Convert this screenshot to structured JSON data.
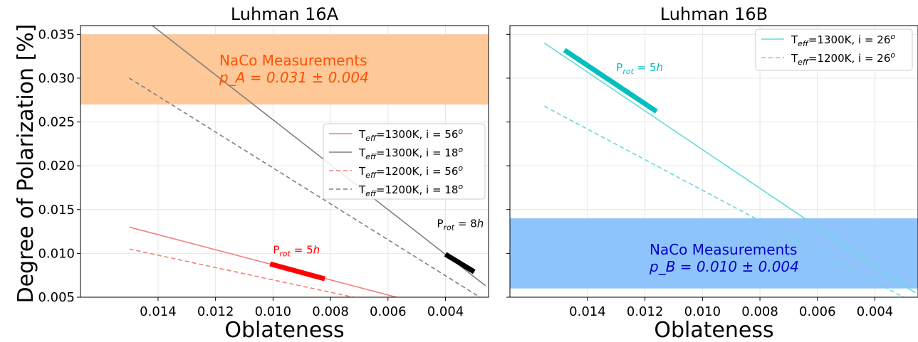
{
  "ylabel": "Degree of Polarization [%]",
  "chart_data": [
    {
      "type": "line",
      "title": "Luhman 16A",
      "xlabel": "Oblateness",
      "xlim": [
        0.0167,
        0.0025
      ],
      "ylim": [
        0.005,
        0.036
      ],
      "x_inverted": true,
      "grid": true,
      "legend_position": "center-right",
      "xticks": [
        "0.014",
        "0.012",
        "0.010",
        "0.008",
        "0.006",
        "0.004"
      ],
      "xtick_values": [
        0.014,
        0.012,
        0.01,
        0.008,
        0.006,
        0.004
      ],
      "yticks": [
        "0.005",
        "0.010",
        "0.015",
        "0.020",
        "0.025",
        "0.030",
        "0.035"
      ],
      "ytick_values": [
        0.005,
        0.01,
        0.015,
        0.02,
        0.025,
        0.03,
        0.035
      ],
      "band": {
        "y": [
          0.027,
          0.035
        ],
        "color": "#ffc898",
        "label_line1": "NaCo Measurements",
        "label_line2": "p_A = 0.031 ± 0.004",
        "label_color": "#ff5000"
      },
      "series": [
        {
          "name": "T_eff=1300K, i = 56°",
          "legend_main": "T",
          "legend_sub": "eff",
          "legend_rest": "=1300K, i = 56",
          "legend_sup": "o",
          "color": "#f47f7c",
          "dash": false,
          "x": [
            0.015,
            0.0057
          ],
          "y": [
            0.013,
            0.005
          ]
        },
        {
          "name": "T_eff=1300K, i = 18°",
          "legend_main": "T",
          "legend_sub": "eff",
          "legend_rest": "=1300K, i = 18",
          "legend_sup": "o",
          "color": "#808080",
          "dash": false,
          "x": [
            0.0142,
            0.0026
          ],
          "y": [
            0.036,
            0.0063
          ]
        },
        {
          "name": "T_eff=1200K, i = 56°",
          "legend_main": "T",
          "legend_sub": "eff",
          "legend_rest": "=1200K, i = 56",
          "legend_sup": "o",
          "color": "#f47f7c",
          "dash": true,
          "x": [
            0.015,
            0.0072
          ],
          "y": [
            0.0105,
            0.005
          ]
        },
        {
          "name": "T_eff=1200K, i = 18°",
          "legend_main": "T",
          "legend_sub": "eff",
          "legend_rest": "=1200K, i = 18",
          "legend_sup": "o",
          "color": "#808080",
          "dash": true,
          "x": [
            0.015,
            0.0028
          ],
          "y": [
            0.03,
            0.005
          ]
        }
      ],
      "highlights": [
        {
          "x": [
            0.0101,
            0.0082
          ],
          "y": [
            0.0088,
            0.0071
          ],
          "color": "#ff0000"
        },
        {
          "x": [
            0.004,
            0.003
          ],
          "y": [
            0.0099,
            0.0079
          ],
          "color": "#000000"
        }
      ],
      "annotations": [
        {
          "main": "P",
          "sub": "rot",
          "rest": " = 5",
          "it": "h",
          "x": 0.01,
          "y": 0.01,
          "color": "#ff0000"
        },
        {
          "main": "P",
          "sub": "rot",
          "rest": " = 8",
          "it": "h",
          "x": 0.004,
          "y": 0.013,
          "color": "#000000"
        }
      ]
    },
    {
      "type": "line",
      "title": "Luhman 16B",
      "xlabel": "Oblateness",
      "xlim": [
        0.0167,
        0.0025
      ],
      "ylim": [
        0.005,
        0.036
      ],
      "x_inverted": true,
      "grid": true,
      "legend_position": "top-right",
      "xticks": [
        "0.014",
        "0.012",
        "0.010",
        "0.008",
        "0.006",
        "0.004"
      ],
      "xtick_values": [
        0.014,
        0.012,
        0.01,
        0.008,
        0.006,
        0.004
      ],
      "yticks": [
        "0.005",
        "0.010",
        "0.015",
        "0.020",
        "0.025",
        "0.030",
        "0.035"
      ],
      "ytick_values": [
        0.005,
        0.01,
        0.015,
        0.02,
        0.025,
        0.03,
        0.035
      ],
      "band": {
        "y": [
          0.006,
          0.014
        ],
        "color": "#8fc3fc",
        "label_line1": "NaCo Measurements",
        "label_line2": "p_B = 0.010 ± 0.004",
        "label_color": "#0000cc"
      },
      "series": [
        {
          "name": "T_eff=1300K, i = 26°",
          "legend_main": "T",
          "legend_sub": "eff",
          "legend_rest": "=1300K, i = 26",
          "legend_sup": "o",
          "color": "#66d9d9",
          "dash": false,
          "x": [
            0.0155,
            0.0026
          ],
          "y": [
            0.034,
            0.0055
          ]
        },
        {
          "name": "T_eff=1200K, i = 26°",
          "legend_main": "T",
          "legend_sub": "eff",
          "legend_rest": "=1200K, i = 26",
          "legend_sup": "o",
          "color": "#66d9d9",
          "dash": true,
          "x": [
            0.0155,
            0.003
          ],
          "y": [
            0.0268,
            0.005
          ]
        }
      ],
      "highlights": [
        {
          "x": [
            0.0148,
            0.0116
          ],
          "y": [
            0.0332,
            0.0262
          ],
          "color": "#00bfbf"
        }
      ],
      "annotations": [
        {
          "main": "P",
          "sub": "rot",
          "rest": " = 5",
          "it": "h",
          "x": 0.013,
          "y": 0.0308,
          "color": "#00bfbf"
        }
      ]
    }
  ]
}
